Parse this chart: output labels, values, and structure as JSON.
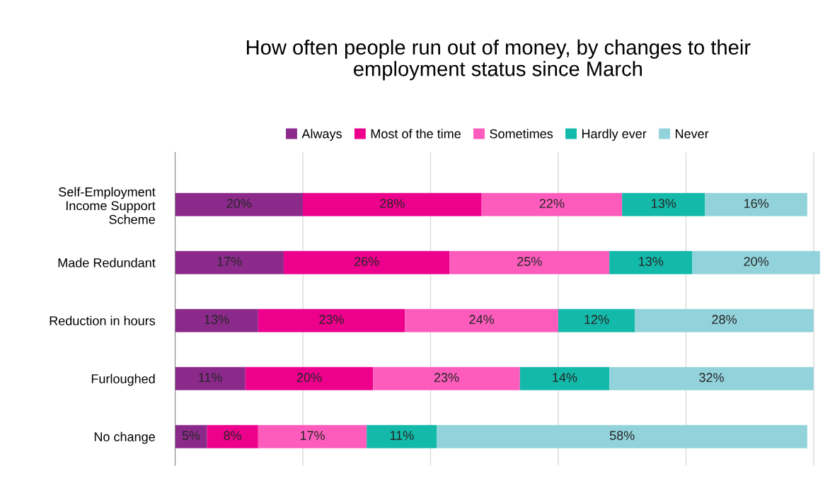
{
  "chart_data": {
    "type": "bar",
    "orientation": "horizontal",
    "stacked": true,
    "title": "How often people run out of money, by changes to their\nemployment status since March",
    "categories": [
      "Self-Employment\nIncome Support\nScheme",
      "Made Redundant",
      "Reduction in hours",
      "Furloughed",
      "No change"
    ],
    "series": [
      {
        "name": "Always",
        "color": "#8b2a8b",
        "values": [
          20,
          17,
          13,
          11,
          5
        ],
        "value_labels": [
          "20%",
          "17%",
          "13%",
          "11%",
          "5%"
        ]
      },
      {
        "name": "Most of the time",
        "color": "#ec008c",
        "values": [
          28,
          26,
          23,
          20,
          8
        ],
        "value_labels": [
          "28%",
          "26%",
          "23%",
          "20%",
          "8%"
        ]
      },
      {
        "name": "Sometimes",
        "color": "#fd5cbd",
        "values": [
          22,
          25,
          24,
          23,
          17
        ],
        "value_labels": [
          "22%",
          "25%",
          "24%",
          "23%",
          "17%"
        ]
      },
      {
        "name": "Hardly ever",
        "color": "#13b9a9",
        "values": [
          13,
          13,
          12,
          14,
          11
        ],
        "value_labels": [
          "13%",
          "13%",
          "12%",
          "14%",
          "11%"
        ]
      },
      {
        "name": "Never",
        "color": "#92d3db",
        "values": [
          16,
          20,
          28,
          32,
          58
        ],
        "value_labels": [
          "16%",
          "20%",
          "28%",
          "32%",
          "58%"
        ]
      }
    ],
    "legend": "top",
    "grid": "x",
    "tick_labels": "y"
  }
}
